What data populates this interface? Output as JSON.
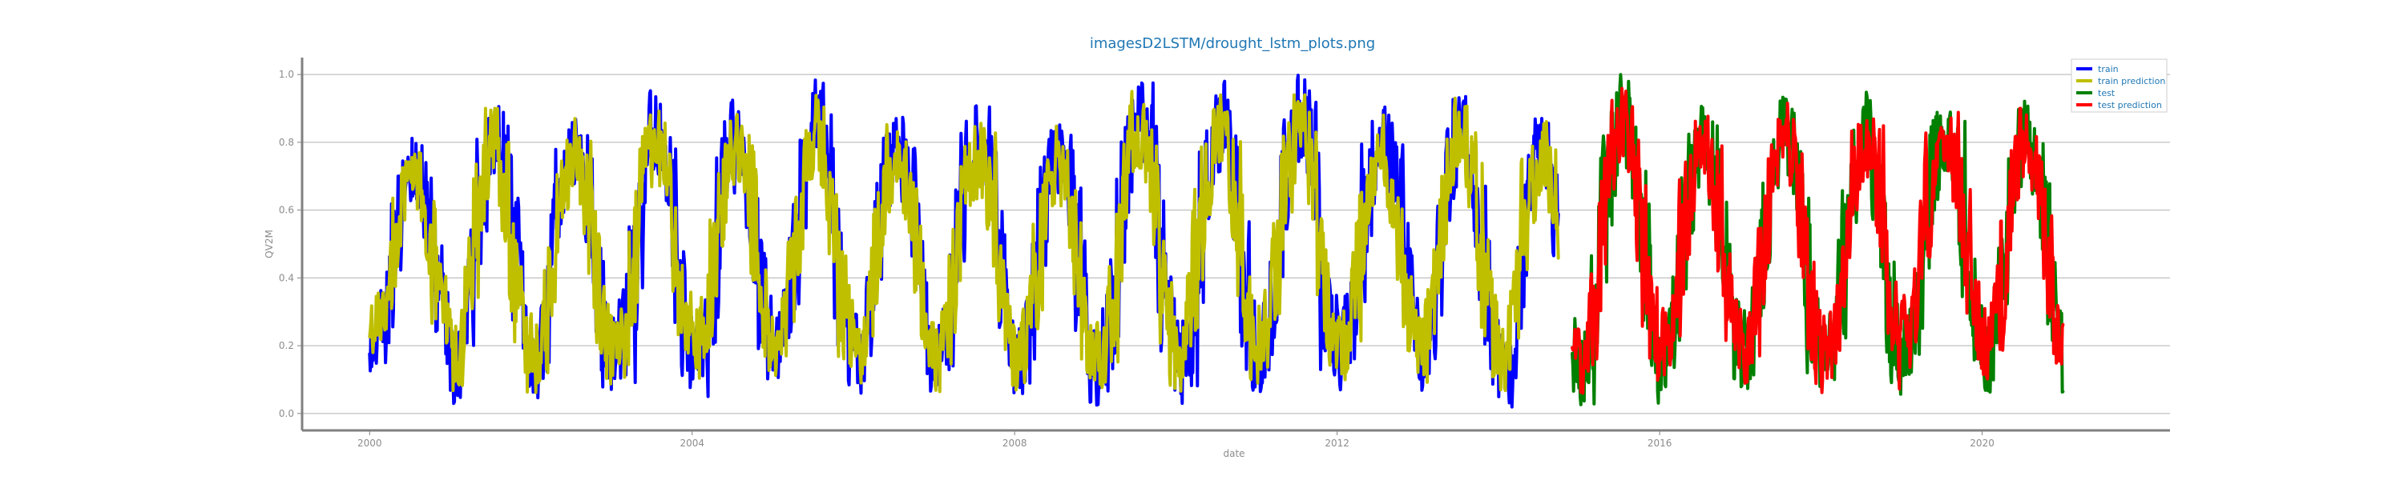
{
  "chart_data": {
    "type": "line",
    "title": "imagesD2LSTM/drought_lstm_plots.png",
    "xlabel": "date",
    "ylabel": "QV2M",
    "xlim": [
      "1999-03-01",
      "2022-05-01"
    ],
    "ylim": [
      -0.05,
      1.05
    ],
    "x_ticks": [
      "2000",
      "2004",
      "2008",
      "2012",
      "2016",
      "2020"
    ],
    "y_ticks": [
      "0.0",
      "0.2",
      "0.4",
      "0.6",
      "0.8",
      "1.0"
    ],
    "grid": "horizontal",
    "legend_position": "top-right",
    "colors": {
      "title": "#1f77b4",
      "grid": "#b0b0b0",
      "axis": "#808080"
    },
    "series": [
      {
        "name": "train",
        "color": "#0000ff",
        "stroke": 4,
        "x_range": [
          "2000-01-01",
          "2014-10-01"
        ],
        "seasonal": [
          {
            "year": 2000,
            "max": 0.82,
            "min": 0.12
          },
          {
            "year": 2001,
            "max": 0.93,
            "min": 0.02
          },
          {
            "year": 2002,
            "max": 0.9,
            "min": 0.03
          },
          {
            "year": 2003,
            "max": 0.97,
            "min": 0.02
          },
          {
            "year": 2004,
            "max": 0.93,
            "min": 0.05
          },
          {
            "year": 2005,
            "max": 0.99,
            "min": 0.04
          },
          {
            "year": 2006,
            "max": 0.9,
            "min": 0.06
          },
          {
            "year": 2007,
            "max": 0.92,
            "min": 0.03
          },
          {
            "year": 2008,
            "max": 0.89,
            "min": 0.02
          },
          {
            "year": 2009,
            "max": 0.99,
            "min": 0.02
          },
          {
            "year": 2010,
            "max": 0.98,
            "min": 0.03
          },
          {
            "year": 2011,
            "max": 1.0,
            "min": 0.06
          },
          {
            "year": 2012,
            "max": 0.91,
            "min": 0.07
          },
          {
            "year": 2013,
            "max": 0.97,
            "min": 0.04
          },
          {
            "year": 2014,
            "max": 0.9,
            "min": 0.0
          }
        ]
      },
      {
        "name": "train prediction",
        "color": "#bfbf00",
        "stroke": 4,
        "x_range": [
          "2000-01-01",
          "2014-10-01"
        ],
        "seasonal": [
          {
            "year": 2000,
            "max": 0.79,
            "min": 0.18
          },
          {
            "year": 2001,
            "max": 0.9,
            "min": 0.03
          },
          {
            "year": 2002,
            "max": 0.87,
            "min": 0.06
          },
          {
            "year": 2003,
            "max": 0.93,
            "min": 0.05
          },
          {
            "year": 2004,
            "max": 0.91,
            "min": 0.08
          },
          {
            "year": 2005,
            "max": 0.95,
            "min": 0.07
          },
          {
            "year": 2006,
            "max": 0.86,
            "min": 0.09
          },
          {
            "year": 2007,
            "max": 0.88,
            "min": 0.06
          },
          {
            "year": 2008,
            "max": 0.86,
            "min": 0.05
          },
          {
            "year": 2009,
            "max": 0.95,
            "min": 0.05
          },
          {
            "year": 2010,
            "max": 0.94,
            "min": 0.06
          },
          {
            "year": 2011,
            "max": 0.94,
            "min": 0.09
          },
          {
            "year": 2012,
            "max": 0.88,
            "min": 0.1
          },
          {
            "year": 2013,
            "max": 0.93,
            "min": 0.07
          },
          {
            "year": 2014,
            "max": 0.87,
            "min": 0.05
          }
        ]
      },
      {
        "name": "test",
        "color": "#008000",
        "stroke": 4,
        "x_range": [
          "2014-12-01",
          "2021-01-01"
        ],
        "seasonal": [
          {
            "year": 2015,
            "max": 1.0,
            "min": 0.02
          },
          {
            "year": 2016,
            "max": 0.94,
            "min": 0.03
          },
          {
            "year": 2017,
            "max": 0.96,
            "min": 0.04
          },
          {
            "year": 2018,
            "max": 0.95,
            "min": 0.01
          },
          {
            "year": 2019,
            "max": 0.95,
            "min": 0.07
          },
          {
            "year": 2020,
            "max": 0.93,
            "min": 0.05
          }
        ]
      },
      {
        "name": "test prediction",
        "color": "#ff0000",
        "stroke": 4,
        "x_range": [
          "2014-12-01",
          "2021-01-01"
        ],
        "seasonal": [
          {
            "year": 2015,
            "max": 0.96,
            "min": 0.06
          },
          {
            "year": 2016,
            "max": 0.92,
            "min": 0.08
          },
          {
            "year": 2017,
            "max": 0.93,
            "min": 0.08
          },
          {
            "year": 2018,
            "max": 0.92,
            "min": 0.06
          },
          {
            "year": 2019,
            "max": 0.92,
            "min": 0.12
          },
          {
            "year": 2020,
            "max": 0.9,
            "min": 0.09
          }
        ]
      }
    ]
  }
}
